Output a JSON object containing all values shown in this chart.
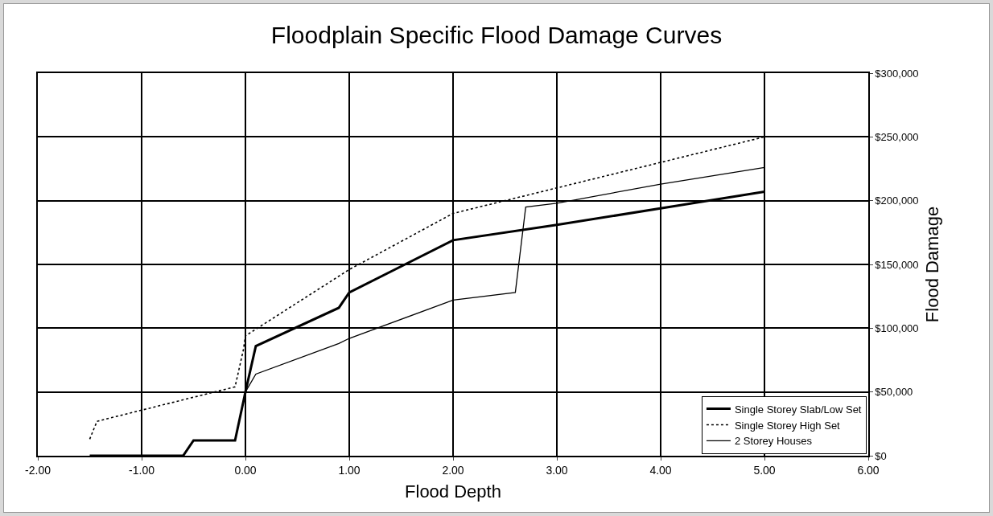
{
  "chart_data": {
    "type": "line",
    "title": "Floodplain Specific Flood Damage Curves",
    "xlabel": "Flood Depth",
    "ylabel": "Flood Damage",
    "xlim": [
      -2,
      6
    ],
    "xticks": [
      {
        "value": -2,
        "label": "-2.00"
      },
      {
        "value": -1,
        "label": "-1.00"
      },
      {
        "value": 0,
        "label": "0.00"
      },
      {
        "value": 1,
        "label": "1.00"
      },
      {
        "value": 2,
        "label": "2.00"
      },
      {
        "value": 3,
        "label": "3.00"
      },
      {
        "value": 4,
        "label": "4.00"
      },
      {
        "value": 5,
        "label": "5.00"
      },
      {
        "value": 6,
        "label": "6.00"
      }
    ],
    "ylim": [
      0,
      300000
    ],
    "yticks": [
      {
        "value": 0,
        "label": "$0"
      },
      {
        "value": 50000,
        "label": "$50,000"
      },
      {
        "value": 100000,
        "label": "$100,000"
      },
      {
        "value": 150000,
        "label": "$150,000"
      },
      {
        "value": 200000,
        "label": "$200,000"
      },
      {
        "value": 250000,
        "label": "$250,000"
      },
      {
        "value": 300000,
        "label": "$300,000"
      }
    ],
    "grid": true,
    "legend": "bottom right",
    "marker": "none",
    "series": [
      {
        "name": "Single Storey Slab/Low Set",
        "color": "#000000",
        "line_style": "solid",
        "x": [
          -1.5,
          -0.6,
          -0.5,
          -0.1,
          0,
          0.1,
          0.9,
          1,
          2,
          3,
          5
        ],
        "values": [
          0,
          0,
          12000,
          12000,
          50000,
          86000,
          116000,
          128000,
          169000,
          181000,
          207000
        ]
      },
      {
        "name": "Single Storey High Set",
        "color": "#000000",
        "line_style": "dotted",
        "x": [
          -1.5,
          -1.43,
          -0.1,
          -0.02,
          0,
          1,
          2,
          3,
          4,
          5
        ],
        "values": [
          13000,
          27000,
          54000,
          83000,
          94000,
          146000,
          190000,
          210000,
          230000,
          250000
        ]
      },
      {
        "name": "2 Storey Houses",
        "color": "#000000",
        "line_style": "solid",
        "x": [
          0,
          0.1,
          0.9,
          1,
          2,
          2.6,
          2.7,
          3,
          4,
          5
        ],
        "values": [
          50000,
          64000,
          88000,
          92000,
          122000,
          128000,
          195000,
          198000,
          213000,
          226000
        ]
      }
    ]
  }
}
